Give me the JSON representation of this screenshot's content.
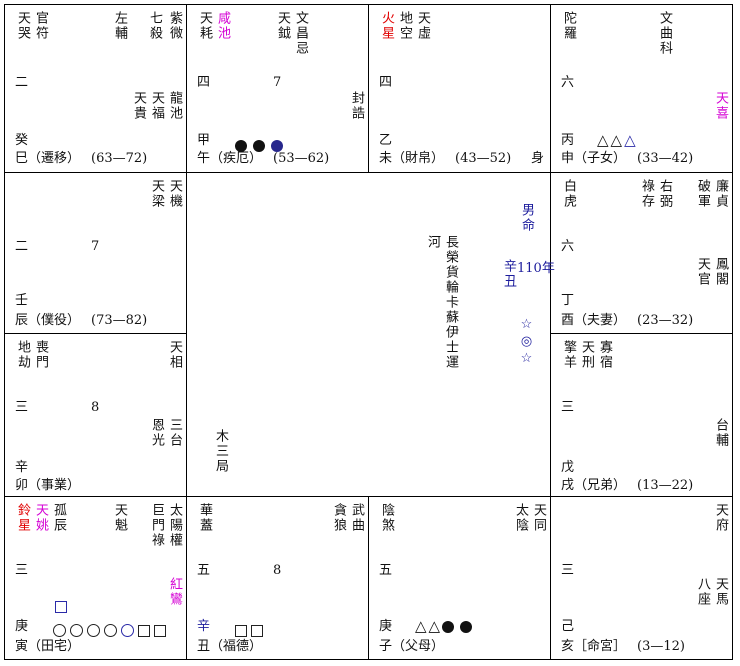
{
  "palaces": {
    "si": {
      "stars_left": [
        "天哭",
        "官符"
      ],
      "stars_right": [
        "左輔",
        "七殺",
        "紫微"
      ],
      "num": "二",
      "minor_right": [
        "天貴",
        "天福",
        "龍池"
      ],
      "stem": "癸",
      "branch_label": "巳（遷移）",
      "range": "(63—72)"
    },
    "wu": {
      "stars_left_1": "天耗",
      "stars_left_2": "咸池",
      "stars_mid": [
        "天鉞"
      ],
      "stars_right": "文昌忌",
      "num": "四",
      "num2": "7",
      "feng_gao": "封誥",
      "stem": "甲",
      "branch_label": "午（疾厄）",
      "range": "(53—62)"
    },
    "wei": {
      "huo": "火星",
      "stars_left": [
        "地空",
        "天虛"
      ],
      "num": "四",
      "stem": "乙",
      "branch_label": "未（財帛）",
      "range": "(43—52)",
      "shen": "身"
    },
    "shen": {
      "stars_left": [
        "陀羅"
      ],
      "stars_right": "文曲科",
      "num": "六",
      "tianxi": "天喜",
      "stem": "丙",
      "branch_label": "申（子女）",
      "range": "(33—42)"
    },
    "chen": {
      "stars_right": [
        "天梁",
        "天機"
      ],
      "num": "二",
      "num2": "7",
      "stem": "壬",
      "branch_label": "辰（僕役）",
      "range": "(73—82)"
    },
    "you": {
      "stars_left": [
        "白虎"
      ],
      "stars_mid": [
        "祿存",
        "右弼"
      ],
      "stars_right": [
        "破軍",
        "廉貞"
      ],
      "num": "六",
      "minor_right": [
        "天官",
        "鳳閣"
      ],
      "stem": "丁",
      "branch_label": "酉（夫妻）",
      "range": "(23—32)"
    },
    "mao": {
      "stars_left": [
        "地劫",
        "喪門"
      ],
      "stars_right": [
        "天相"
      ],
      "num": "三",
      "num2": "8",
      "minor_right": [
        "恩光",
        "三台"
      ],
      "stem": "辛",
      "branch_label": "卯（事業）",
      "range": ""
    },
    "xu": {
      "stars_left": [
        "擎羊",
        "天刑",
        "寡宿"
      ],
      "num": "三",
      "minor_right": [
        "台輔"
      ],
      "stem": "戊",
      "branch_label": "戌（兄弟）",
      "range": "(13—22)"
    },
    "yin": {
      "ling": "鈴星",
      "yao": "天姚",
      "stars_left": [
        "孤辰"
      ],
      "stars_mid": [
        "天魁"
      ],
      "stars_right": [
        "巨門祿",
        "太陽權"
      ],
      "num": "三",
      "hongluan": "紅鸞",
      "stem": "庚",
      "branch_label": "寅（田宅）"
    },
    "chou": {
      "stars_left": [
        "華蓋"
      ],
      "stars_right": [
        "貪狼",
        "武曲"
      ],
      "num": "五",
      "num2": "8",
      "stem": "辛",
      "branch_label": "丑（福德）"
    },
    "zi": {
      "stars_left": [
        "陰煞"
      ],
      "stars_right": [
        "太陰",
        "天同"
      ],
      "num": "五",
      "stem": "庚",
      "branch_label": "子（父母）"
    },
    "hai": {
      "stars_right": [
        "天府"
      ],
      "num": "三",
      "minor_right": [
        "八座",
        "天馬"
      ],
      "stem": "己",
      "branch_label": "亥［命宮］",
      "range": "(3—12)"
    }
  },
  "center": {
    "gender": "男命",
    "ganzhi": "辛丑",
    "year": "110年",
    "name_cols": [
      "河",
      "長榮貨輪卡蘇伊士運"
    ],
    "marks": "☆◎☆",
    "ju": "木三局"
  }
}
